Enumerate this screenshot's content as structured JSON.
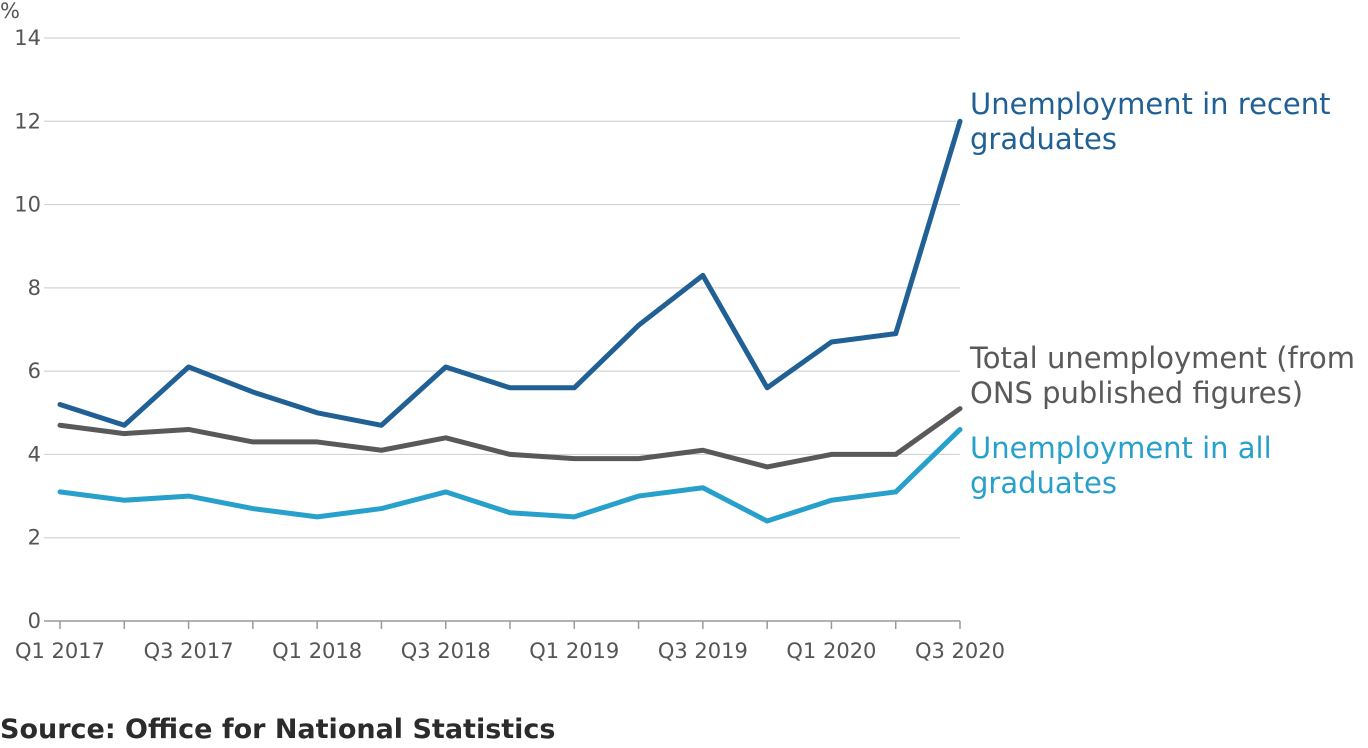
{
  "chart_data": {
    "type": "line",
    "ylabel": "%",
    "ylim": [
      0,
      14
    ],
    "yticks": [
      0,
      2,
      4,
      6,
      8,
      10,
      12,
      14
    ],
    "grid": true,
    "x": [
      "Q1 2017",
      "Q2 2017",
      "Q3 2017",
      "Q4 2017",
      "Q1 2018",
      "Q2 2018",
      "Q3 2018",
      "Q4 2018",
      "Q1 2019",
      "Q2 2019",
      "Q3 2019",
      "Q4 2019",
      "Q1 2020",
      "Q2 2020",
      "Q3 2020"
    ],
    "xtick_labels": [
      "Q1 2017",
      "Q3 2017",
      "Q1 2018",
      "Q3 2018",
      "Q1 2019",
      "Q3 2019",
      "Q1 2020",
      "Q3 2020"
    ],
    "series": [
      {
        "name": "Unemployment in recent graduates",
        "name_lines": [
          "Unemployment in recent",
          "graduates"
        ],
        "color": "#206095",
        "values": [
          5.2,
          4.7,
          6.1,
          5.5,
          5.0,
          4.7,
          6.1,
          5.6,
          5.6,
          7.1,
          8.3,
          5.6,
          6.7,
          6.9,
          12.0
        ]
      },
      {
        "name": "Total unemployment (from ONS published figures)",
        "name_lines": [
          "Total unemployment (from",
          "ONS published figures)"
        ],
        "color": "#595959",
        "values": [
          4.7,
          4.5,
          4.6,
          4.3,
          4.3,
          4.1,
          4.4,
          4.0,
          3.9,
          3.9,
          4.1,
          3.7,
          4.0,
          4.0,
          5.1
        ]
      },
      {
        "name": "Unemployment in all graduates",
        "name_lines": [
          "Unemployment in all",
          "graduates"
        ],
        "color": "#27a0cc",
        "values": [
          3.1,
          2.9,
          3.0,
          2.7,
          2.5,
          2.7,
          3.1,
          2.6,
          2.5,
          3.0,
          3.2,
          2.4,
          2.9,
          3.1,
          4.6
        ]
      }
    ],
    "source": "Source: Office for National Statistics"
  }
}
